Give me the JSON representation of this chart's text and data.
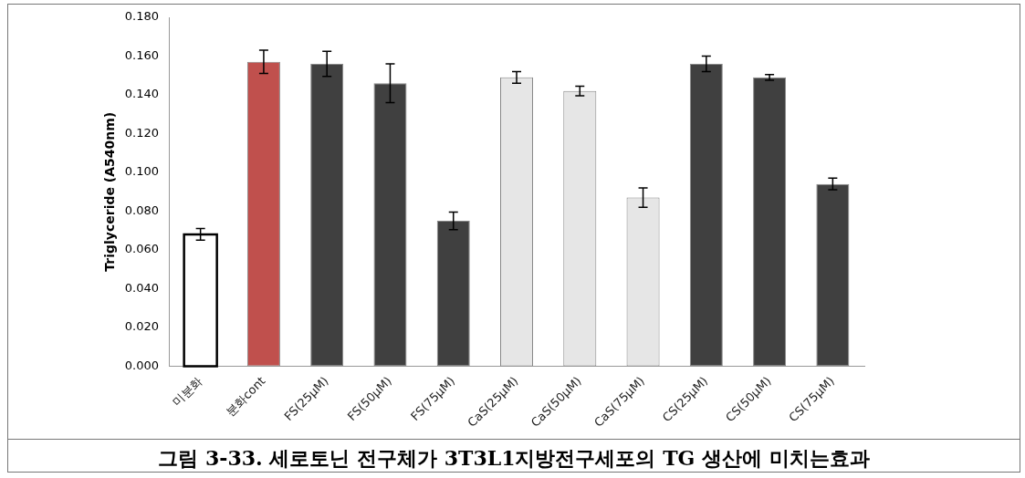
{
  "chart_data": {
    "type": "bar",
    "categories": [
      "미분화",
      "분화cont",
      "FS(25μM)",
      "FS(50μM)",
      "FS(75μM)",
      "CaS(25μM)",
      "CaS(50μM)",
      "CaS(75μM)",
      "CS(25μM)",
      "CS(50μM)",
      "CS(75μM)"
    ],
    "values": [
      0.068,
      0.157,
      0.156,
      0.146,
      0.075,
      0.149,
      0.142,
      0.087,
      0.156,
      0.149,
      0.094
    ],
    "errors": [
      0.003,
      0.006,
      0.0065,
      0.01,
      0.0045,
      0.003,
      0.0025,
      0.005,
      0.004,
      0.0015,
      0.003
    ],
    "colors": [
      "#ffffff",
      "#c0504d",
      "#404040",
      "#404040",
      "#404040",
      "#e6e6e6",
      "#e6e6e6",
      "#e6e6e6",
      "#404040",
      "#404040",
      "#404040"
    ],
    "ylabel": "Triglyceride (A540nm)",
    "ylim": [
      0,
      0.18
    ],
    "yticks": [
      {
        "value": 0,
        "label": "0.000"
      },
      {
        "value": 0.02,
        "label": "0.020"
      },
      {
        "value": 0.04,
        "label": "0.040"
      },
      {
        "value": 0.06,
        "label": "0.060"
      },
      {
        "value": 0.08,
        "label": "0.080"
      },
      {
        "value": 0.1,
        "label": "0.100"
      },
      {
        "value": 0.12,
        "label": "0.120"
      },
      {
        "value": 0.14,
        "label": "0.140"
      },
      {
        "value": 0.16,
        "label": "0.160"
      },
      {
        "value": 0.18,
        "label": "0.180"
      }
    ],
    "grid": false,
    "legend": false,
    "annotations": [
      "그림 3-33. 세로토닌 전구체가 3T3L1지방전구세포의 TG 생산에 미치는효과"
    ]
  }
}
